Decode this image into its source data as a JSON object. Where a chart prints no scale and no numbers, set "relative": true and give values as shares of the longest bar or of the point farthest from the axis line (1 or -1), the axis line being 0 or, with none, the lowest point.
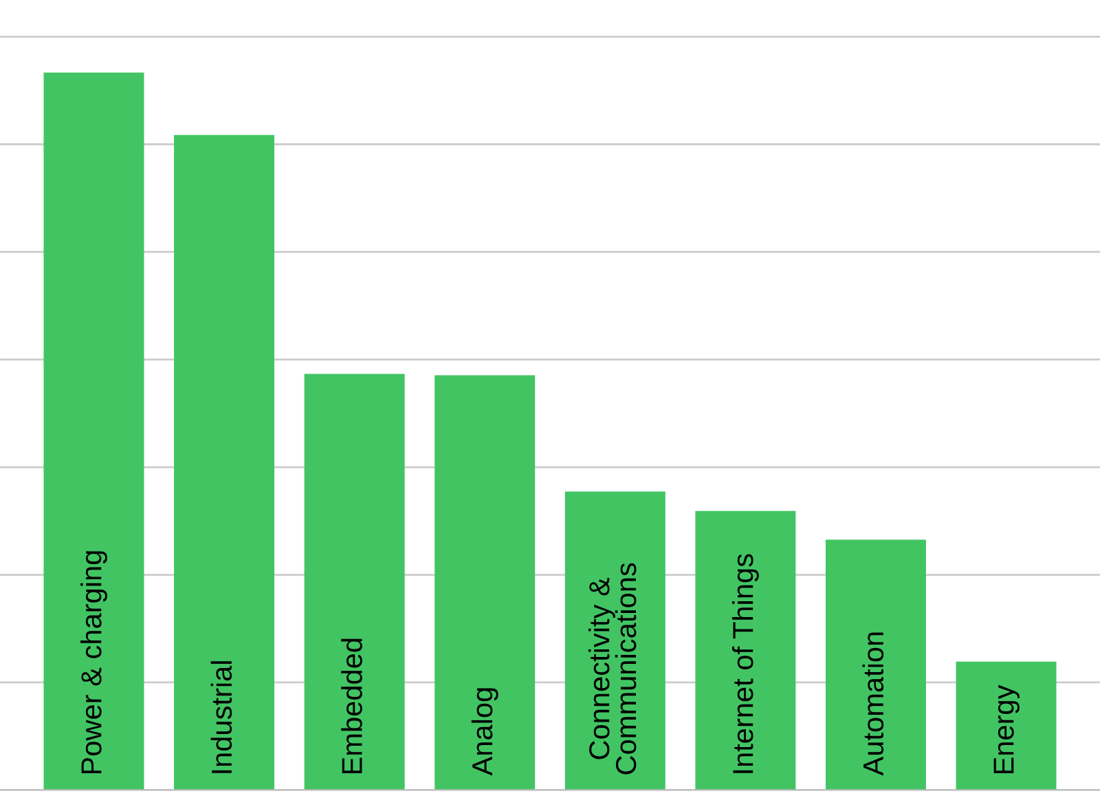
{
  "chart_data": {
    "type": "bar",
    "relative": true,
    "color": "#42c463",
    "grid": "y",
    "categories": [
      "Power & charging",
      "Industrial",
      "Embedded",
      "Analog",
      "Connectivity &\nCommunications",
      "Internet of Things",
      "Automation",
      "Energy"
    ],
    "values": [
      1,
      0.913,
      0.58,
      0.578,
      0.416,
      0.389,
      0.349,
      0.179
    ]
  }
}
